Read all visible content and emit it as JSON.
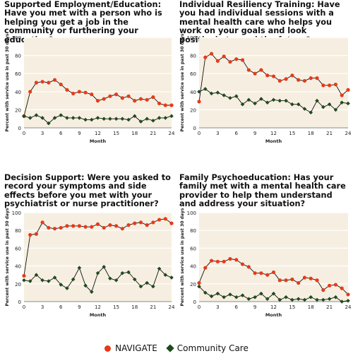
{
  "colors": {
    "navigate": "#e8391b",
    "community": "#1e4a1e",
    "plot_background": "#f6efe1",
    "gridline": "#ffffff"
  },
  "legend": {
    "navigate_label": "NAVIGATE",
    "community_label": "Community Care"
  },
  "chart_data": [
    {
      "type": "line",
      "title": "Supported Employment/Education: Have you met with a person who is  helping you get a job in the community or  furthering your education?",
      "xlabel": "Month",
      "ylabel": "Percent with service use in past 30 days",
      "xlim": [
        0,
        24
      ],
      "ylim": [
        0,
        100
      ],
      "xticks": [
        0,
        3,
        6,
        9,
        12,
        15,
        18,
        21,
        24
      ],
      "yticks": [
        0,
        20,
        40,
        60,
        80,
        100
      ],
      "x": [
        0,
        1,
        2,
        3,
        4,
        5,
        6,
        7,
        8,
        9,
        10,
        11,
        12,
        13,
        14,
        15,
        16,
        17,
        18,
        19,
        20,
        21,
        22,
        23,
        24
      ],
      "series": [
        {
          "name": "NAVIGATE",
          "values": [
            13,
            40,
            50,
            51,
            50,
            53,
            48,
            42,
            38,
            40,
            39,
            37,
            30,
            32,
            35,
            37,
            33,
            35,
            30,
            32,
            31,
            34,
            27,
            25,
            25
          ]
        },
        {
          "name": "Community Care",
          "values": [
            13,
            11,
            14,
            11,
            5,
            11,
            14,
            11,
            11,
            11,
            9,
            9,
            11,
            10,
            10,
            10,
            10,
            9,
            13,
            7,
            10,
            8,
            11,
            11,
            13
          ]
        }
      ]
    },
    {
      "type": "line",
      "title": "Individual Resiliency Training: Have you had individual sessions with a  mental health care who helps you work on your goals and look positively toward the future?",
      "xlabel": "Month",
      "ylabel": "Percent with service use in past 30 days",
      "xlim": [
        0,
        24
      ],
      "ylim": [
        0,
        100
      ],
      "xticks": [
        0,
        3,
        6,
        9,
        12,
        15,
        18,
        21,
        24
      ],
      "yticks": [
        0,
        20,
        40,
        60,
        80,
        100
      ],
      "x": [
        0,
        1,
        2,
        3,
        4,
        5,
        6,
        7,
        8,
        9,
        10,
        11,
        12,
        13,
        14,
        15,
        16,
        17,
        18,
        19,
        20,
        21,
        22,
        23,
        24
      ],
      "series": [
        {
          "name": "NAVIGATE",
          "values": [
            29,
            78,
            82,
            74,
            79,
            73,
            76,
            75,
            64,
            60,
            64,
            58,
            57,
            52,
            54,
            58,
            53,
            52,
            55,
            55,
            47,
            47,
            48,
            36,
            42
          ]
        },
        {
          "name": "Community Care",
          "values": [
            40,
            43,
            38,
            39,
            36,
            33,
            35,
            26,
            31,
            27,
            32,
            28,
            31,
            30,
            30,
            26,
            26,
            21,
            17,
            30,
            23,
            26,
            20,
            28,
            27
          ]
        }
      ]
    },
    {
      "type": "line",
      "title": "Decision Support: Were you asked to record your symptoms and side effects before you met with your psychiatrist or nurse practitioner?",
      "xlabel": "Month",
      "ylabel": "Percent with service use in past 30 days",
      "xlim": [
        0,
        24
      ],
      "ylim": [
        0,
        100
      ],
      "xticks": [
        0,
        3,
        6,
        9,
        12,
        15,
        18,
        21,
        24
      ],
      "yticks": [
        0,
        20,
        40,
        60,
        80,
        100
      ],
      "x": [
        0,
        1,
        2,
        3,
        4,
        5,
        6,
        7,
        8,
        9,
        10,
        11,
        12,
        13,
        14,
        15,
        16,
        17,
        18,
        19,
        20,
        21,
        22,
        23,
        24
      ],
      "series": [
        {
          "name": "NAVIGATE",
          "values": [
            29,
            75,
            76,
            89,
            83,
            82,
            83,
            85,
            85,
            85,
            84,
            84,
            87,
            83,
            86,
            85,
            82,
            86,
            88,
            89,
            86,
            89,
            92,
            93,
            88
          ]
        },
        {
          "name": "Community Care",
          "values": [
            24,
            23,
            30,
            24,
            23,
            27,
            19,
            15,
            25,
            38,
            18,
            11,
            32,
            39,
            26,
            24,
            32,
            33,
            25,
            17,
            21,
            17,
            37,
            30,
            27
          ]
        }
      ]
    },
    {
      "type": "line",
      "title": "Family Psychoeducation: Has your family met with a mental health care provider to  help them understand and address your situation?",
      "xlabel": "Month",
      "ylabel": "Percent with service use in past 30 days",
      "xlim": [
        0,
        24
      ],
      "ylim": [
        0,
        100
      ],
      "xticks": [
        0,
        3,
        6,
        9,
        12,
        15,
        18,
        21,
        24
      ],
      "yticks": [
        0,
        20,
        40,
        60,
        80,
        100
      ],
      "x": [
        0,
        1,
        2,
        3,
        4,
        5,
        6,
        7,
        8,
        9,
        10,
        11,
        12,
        13,
        14,
        15,
        16,
        17,
        18,
        19,
        20,
        21,
        22,
        23,
        24
      ],
      "series": [
        {
          "name": "NAVIGATE",
          "values": [
            21,
            38,
            46,
            45,
            45,
            48,
            47,
            42,
            39,
            32,
            32,
            30,
            33,
            24,
            24,
            25,
            21,
            27,
            26,
            24,
            13,
            18,
            19,
            15,
            8
          ]
        },
        {
          "name": "Community Care",
          "values": [
            17,
            10,
            6,
            9,
            5,
            8,
            5,
            7,
            3,
            5,
            9,
            3,
            9,
            2,
            5,
            2,
            3,
            2,
            5,
            2,
            2,
            3,
            5,
            0,
            1
          ]
        }
      ]
    }
  ]
}
